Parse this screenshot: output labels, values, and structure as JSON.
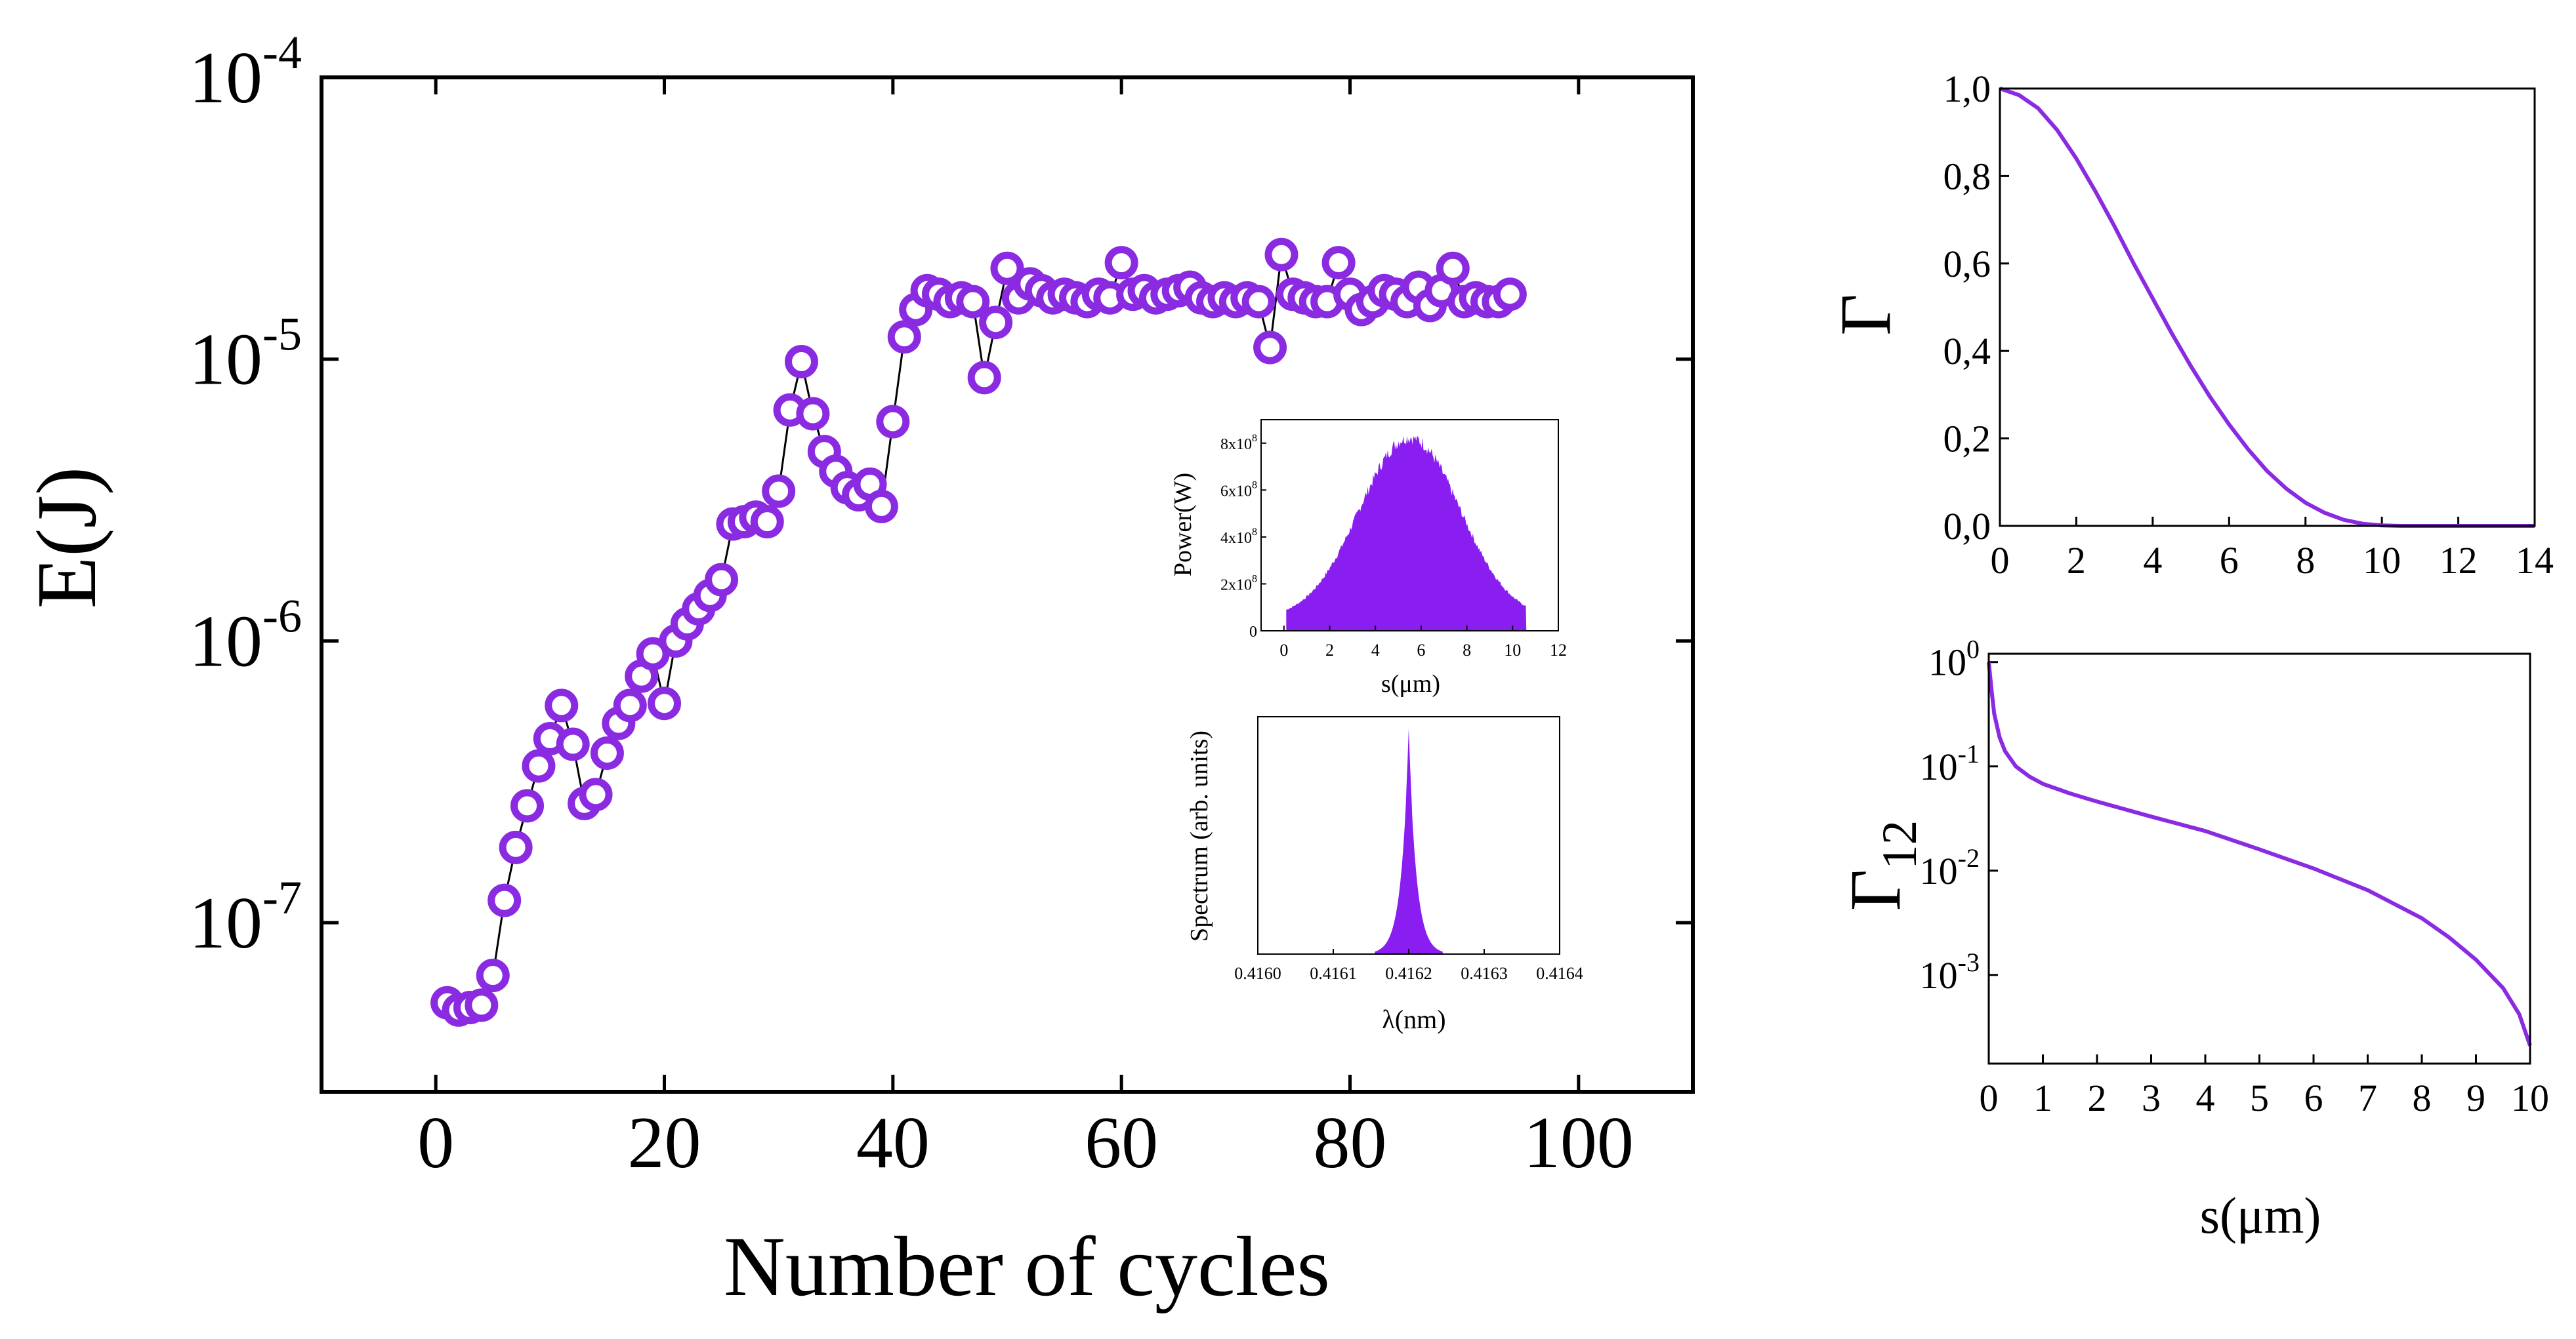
{
  "colors": {
    "marker": "#8a2be2",
    "line": "#000000",
    "fill": "#8a1ef0"
  },
  "chart_data": [
    {
      "id": "main",
      "type": "scatter",
      "title": "",
      "xlabel": "Number of cycles",
      "ylabel": "E(J)",
      "xlim": [
        -10,
        110
      ],
      "ylim_log10": [
        -7.6,
        -4
      ],
      "yscale": "log",
      "xticks": [
        0,
        20,
        40,
        60,
        80,
        100
      ],
      "xtick_labels": [
        "0",
        "20",
        "40",
        "60",
        "80",
        "100"
      ],
      "yticks": [
        {
          "exp": -7,
          "base": "10",
          "sup": "-7"
        },
        {
          "exp": -6,
          "base": "10",
          "sup": "-6"
        },
        {
          "exp": -5,
          "base": "10",
          "sup": "-5"
        },
        {
          "exp": -4,
          "base": "10",
          "sup": "-4"
        }
      ],
      "series": [
        {
          "name": "E",
          "x": [
            1,
            2,
            3,
            4,
            5,
            6,
            7,
            8,
            9,
            10,
            11,
            12,
            13,
            14,
            15,
            16,
            17,
            18,
            19,
            20,
            21,
            22,
            23,
            24,
            25,
            26,
            27,
            28,
            29,
            30,
            31,
            32,
            33,
            34,
            35,
            36,
            37,
            38,
            39,
            40,
            41,
            42,
            43,
            44,
            45,
            46,
            47,
            48,
            49,
            50,
            51,
            52,
            53,
            54,
            55,
            56,
            57,
            58,
            59,
            60,
            61,
            62,
            63,
            64,
            65,
            66,
            67,
            68,
            69,
            70,
            71,
            72,
            73,
            74,
            75,
            76,
            77,
            78,
            79,
            80,
            81,
            82,
            83,
            84,
            85,
            86,
            87,
            88,
            89,
            90,
            91,
            92,
            93,
            94
          ],
          "y": [
            5.2e-08,
            4.9e-08,
            5e-08,
            5.1e-08,
            6.5e-08,
            1.2e-07,
            1.85e-07,
            2.6e-07,
            3.6e-07,
            4.5e-07,
            5.9e-07,
            4.3e-07,
            2.65e-07,
            2.85e-07,
            4e-07,
            5.1e-07,
            5.9e-07,
            7.5e-07,
            9e-07,
            6e-07,
            1e-06,
            1.15e-06,
            1.3e-06,
            1.45e-06,
            1.65e-06,
            2.6e-06,
            2.65e-06,
            2.75e-06,
            2.65e-06,
            3.4e-06,
            6.6e-06,
            9.8e-06,
            6.4e-06,
            4.7e-06,
            4e-06,
            3.5e-06,
            3.3e-06,
            3.6e-06,
            3e-06,
            6e-06,
            1.2e-05,
            1.5e-05,
            1.75e-05,
            1.7e-05,
            1.6e-05,
            1.65e-05,
            1.6e-05,
            8.6e-06,
            1.35e-05,
            2.1e-05,
            1.65e-05,
            1.85e-05,
            1.75e-05,
            1.65e-05,
            1.7e-05,
            1.65e-05,
            1.6e-05,
            1.7e-05,
            1.65e-05,
            2.2e-05,
            1.7e-05,
            1.75e-05,
            1.65e-05,
            1.7e-05,
            1.75e-05,
            1.8e-05,
            1.65e-05,
            1.6e-05,
            1.65e-05,
            1.6e-05,
            1.65e-05,
            1.6e-05,
            1.1e-05,
            2.35e-05,
            1.7e-05,
            1.65e-05,
            1.6e-05,
            1.6e-05,
            2.2e-05,
            1.7e-05,
            1.5e-05,
            1.6e-05,
            1.75e-05,
            1.7e-05,
            1.6e-05,
            1.8e-05,
            1.55e-05,
            1.75e-05,
            2.1e-05,
            1.6e-05,
            1.65e-05,
            1.6e-05,
            1.6e-05,
            1.7e-05
          ]
        }
      ]
    },
    {
      "id": "inset_power",
      "type": "area",
      "xlabel": "s(μm)",
      "ylabel": "Power(W)",
      "xlim": [
        -1,
        12
      ],
      "ylim": [
        0,
        9
      ],
      "xticks": [
        0,
        2,
        4,
        6,
        8,
        10,
        12
      ],
      "xtick_labels": [
        "0",
        "2",
        "4",
        "6",
        "8",
        "10",
        "12"
      ],
      "yticks": [
        0,
        2,
        4,
        6,
        8
      ],
      "ytick_base_labels": [
        "0",
        "2x10",
        "4x10",
        "6x10",
        "8x10"
      ],
      "ytick_sups": [
        "",
        "8",
        "8",
        "8",
        "8"
      ],
      "envelope": {
        "x_start": 0.1,
        "x_end": 10.6,
        "peak_x": 5.5,
        "peak_y": 8.0
      }
    },
    {
      "id": "inset_spectrum",
      "type": "area",
      "xlabel": "λ(nm)",
      "ylabel": "Spectrum (arb. units)",
      "xlim": [
        0.416,
        0.4164
      ],
      "ylim": [
        0,
        1.05
      ],
      "xticks": [
        0.416,
        0.4161,
        0.4162,
        0.4163,
        0.4164
      ],
      "xtick_labels": [
        "0.4160",
        "0.4161",
        "0.4162",
        "0.4163",
        "0.4164"
      ],
      "peak": {
        "center": 0.4162,
        "width": 7.5e-06,
        "height": 1.0
      }
    },
    {
      "id": "gamma",
      "type": "line",
      "ylabel": "Γ",
      "xlim": [
        0,
        14
      ],
      "ylim": [
        0,
        1.0
      ],
      "xticks": [
        0,
        2,
        4,
        6,
        8,
        10,
        12,
        14
      ],
      "xtick_labels": [
        "0",
        "2",
        "4",
        "6",
        "8",
        "10",
        "12",
        "14"
      ],
      "yticks": [
        0,
        0.2,
        0.4,
        0.6,
        0.8,
        1.0
      ],
      "ytick_labels": [
        "0,0",
        "0,2",
        "0,4",
        "0,6",
        "0,8",
        "1,0"
      ],
      "series": [
        {
          "name": "Γ",
          "x": [
            0,
            0.5,
            1,
            1.5,
            2,
            2.5,
            3,
            3.5,
            4,
            4.5,
            5,
            5.5,
            6,
            6.5,
            7,
            7.5,
            8,
            8.5,
            9,
            9.5,
            10,
            10.5,
            11,
            12,
            13,
            14
          ],
          "y": [
            1.0,
            0.985,
            0.955,
            0.905,
            0.84,
            0.765,
            0.685,
            0.6,
            0.52,
            0.44,
            0.365,
            0.295,
            0.232,
            0.175,
            0.125,
            0.085,
            0.053,
            0.03,
            0.014,
            0.005,
            0.001,
            0,
            0,
            0,
            0,
            0
          ]
        }
      ]
    },
    {
      "id": "gamma12",
      "type": "line",
      "xlabel": "s(μm)",
      "ylabel_base": "Γ",
      "ylabel_sub": "12",
      "yscale": "log",
      "xlim": [
        0,
        10
      ],
      "ylim_log10": [
        -3.85,
        0.08
      ],
      "xticks": [
        0,
        1,
        2,
        3,
        4,
        5,
        6,
        7,
        8,
        9,
        10
      ],
      "xtick_labels": [
        "0",
        "1",
        "2",
        "3",
        "4",
        "5",
        "6",
        "7",
        "8",
        "9",
        "10"
      ],
      "yticks": [
        {
          "exp": 0,
          "base": "10",
          "sup": "0"
        },
        {
          "exp": -1,
          "base": "10",
          "sup": "-1"
        },
        {
          "exp": -2,
          "base": "10",
          "sup": "-2"
        },
        {
          "exp": -3,
          "base": "10",
          "sup": "-3"
        }
      ],
      "series": [
        {
          "name": "Γ12",
          "x": [
            0,
            0.05,
            0.1,
            0.2,
            0.3,
            0.5,
            0.75,
            1,
            1.5,
            2,
            3,
            4,
            5,
            6,
            7,
            8,
            8.5,
            9,
            9.5,
            9.8,
            10
          ],
          "y": [
            1.0,
            0.55,
            0.32,
            0.19,
            0.14,
            0.1,
            0.08,
            0.068,
            0.055,
            0.046,
            0.033,
            0.024,
            0.016,
            0.0105,
            0.0065,
            0.0035,
            0.0023,
            0.0014,
            0.00075,
            0.00042,
            0.00021
          ]
        }
      ]
    }
  ]
}
